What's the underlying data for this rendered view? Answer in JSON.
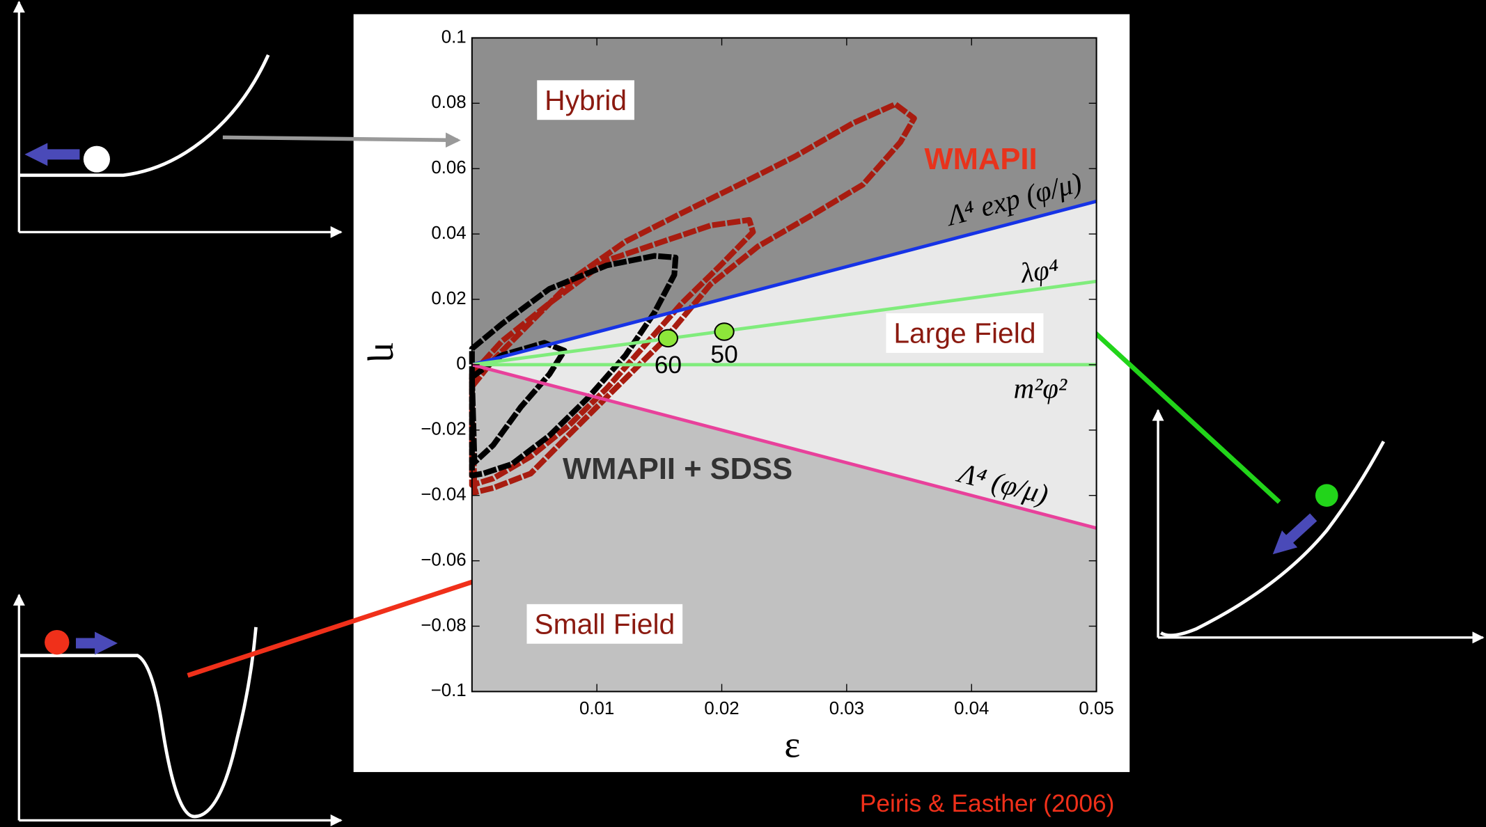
{
  "chart_data": {
    "type": "line",
    "xlabel": "ε",
    "ylabel": "η",
    "xlim": [
      0,
      0.05
    ],
    "ylim": [
      -0.1,
      0.1
    ],
    "xticks": [
      0.01,
      0.02,
      0.03,
      0.04,
      0.05
    ],
    "yticks": [
      0.1,
      0.08,
      0.06,
      0.04,
      0.02,
      0,
      {
        "value": -0.02,
        "label": "−0.02"
      },
      {
        "value": -0.04,
        "label": "−0.04"
      },
      {
        "value": -0.06,
        "label": "−0.06"
      },
      {
        "value": -0.08,
        "label": "−0.08"
      },
      {
        "value": -0.1,
        "label": "−0.1"
      }
    ],
    "regions": [
      {
        "name": "Hybrid",
        "color": "#8e8e8e"
      },
      {
        "name": "Large Field",
        "color": "#e9e9e9"
      },
      {
        "name": "Small Field",
        "color": "#c1c1c1"
      }
    ],
    "series": [
      {
        "name": "Λ⁴ exp (φ/μ)",
        "color": "#1633e6",
        "x": [
          0,
          0.05
        ],
        "values": [
          0,
          0.05
        ]
      },
      {
        "name": "λφ⁴",
        "color": "#80ec7c",
        "x": [
          0,
          0.05
        ],
        "values": [
          0,
          0.0255
        ]
      },
      {
        "name": "m²φ²",
        "color": "#80ec7c",
        "x": [
          0,
          0.05
        ],
        "values": [
          0,
          0
        ]
      },
      {
        "name": "Λ⁴ (φ/μ)",
        "color": "#e8419b",
        "x": [
          0,
          0.05
        ],
        "values": [
          0,
          -0.05
        ]
      }
    ],
    "contours": [
      {
        "name": "WMAPII",
        "color": "#a81c10",
        "label_color": "#e8331c",
        "levels": [
          {
            "x": [
              0,
              0.0017,
              0.0047,
              0.0085,
              0.0123,
              0.0168,
              0.0214,
              0.0259,
              0.0305,
              0.0339,
              0.0354,
              0.0343,
              0.0313,
              0.0275,
              0.0229,
              0.0191,
              0.0153,
              0.0115,
              0.0077,
              0.0047,
              0.0017,
              0.0002
            ],
            "y": [
              -0.0067,
              0.0014,
              0.013,
              0.0275,
              0.0377,
              0.0464,
              0.0551,
              0.0638,
              0.0739,
              0.0797,
              0.0754,
              0.0681,
              0.0551,
              0.0464,
              0.0362,
              0.0246,
              0.0072,
              -0.0072,
              -0.0217,
              -0.0333,
              -0.0377,
              -0.0391
            ]
          },
          {
            "x": [
              0,
              0.0024,
              0.0062,
              0.0108,
              0.0153,
              0.0191,
              0.0222,
              0.0225,
              0.0199,
              0.0168,
              0.0138,
              0.0108,
              0.0077,
              0.0047,
              0.0017,
              0
            ],
            "y": [
              -0.0029,
              0.0072,
              0.0188,
              0.0319,
              0.0377,
              0.0426,
              0.0443,
              0.0406,
              0.0304,
              0.0188,
              0.0058,
              -0.0072,
              -0.0188,
              -0.0281,
              -0.0348,
              -0.0368
            ]
          }
        ]
      },
      {
        "name": "WMAPII + SDSS",
        "color": "#000000",
        "label_color": "#333333",
        "levels": [
          {
            "x": [
              0,
              0.0024,
              0.0062,
              0.0108,
              0.0146,
              0.0163,
              0.0162,
              0.0146,
              0.0123,
              0.0093,
              0.0062,
              0.0032,
              0.0009,
              0
            ],
            "y": [
              0.0049,
              0.0125,
              0.0232,
              0.0304,
              0.0333,
              0.0328,
              0.0275,
              0.0159,
              0.0029,
              -0.0101,
              -0.0217,
              -0.0304,
              -0.0333,
              -0.0339
            ]
          },
          {
            "x": [
              0,
              0.0024,
              0.0058,
              0.0074,
              0.0062,
              0.0039,
              0.0017,
              0.0002
            ],
            "y": [
              -0.0038,
              0.0029,
              0.0067,
              0.0043,
              -0.0029,
              -0.013,
              -0.0246,
              -0.0299
            ]
          }
        ]
      }
    ],
    "points": {
      "color": "#8de63a",
      "x": [
        0.0157,
        0.0202
      ],
      "values": [
        0.0081,
        0.0101
      ],
      "labels": [
        "60",
        "50"
      ]
    },
    "credit": "Peiris & Easther (2006)"
  }
}
